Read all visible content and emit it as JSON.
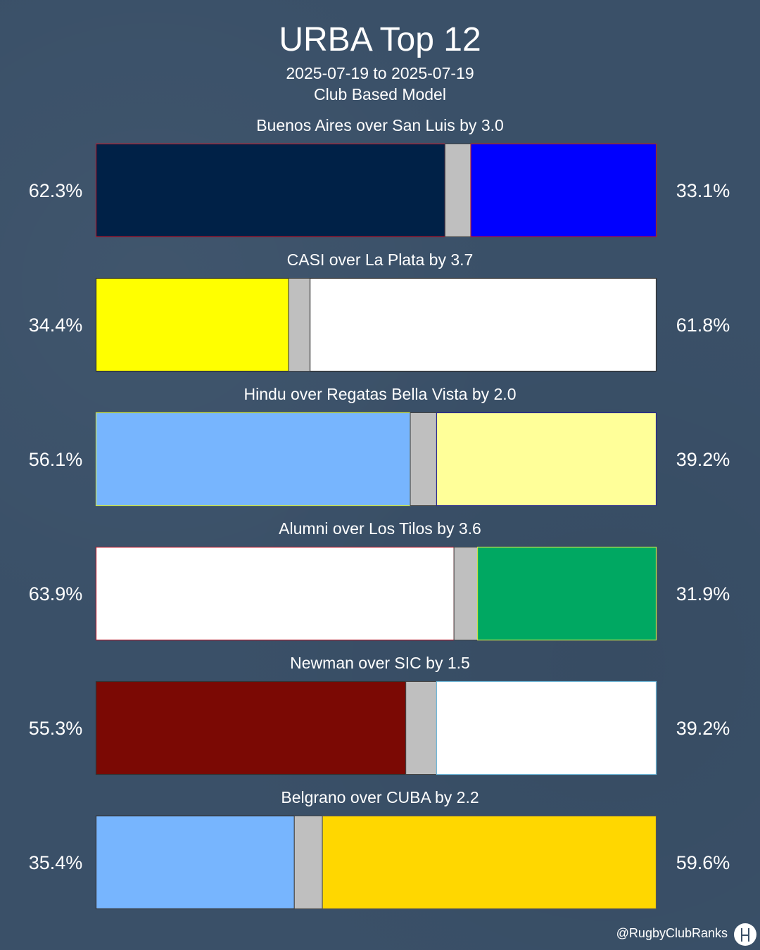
{
  "header": {
    "title": "URBA Top 12",
    "date_range": "2025-07-19 to 2025-07-19",
    "model": "Club Based Model"
  },
  "footer": {
    "handle": "@RugbyClubRanks",
    "logo_icon": "rugby-posts-icon"
  },
  "colors": {
    "background": "#3a5068",
    "draw": "#bfbfbf",
    "text": "#ffffff"
  },
  "chart_data": {
    "type": "bar",
    "orientation": "horizontal-stacked",
    "categories": [
      "Buenos Aires over San Luis by 3.0",
      "CASI over La Plata by 3.7",
      "Hindu over Regatas Bella Vista by 2.0",
      "Alumni over Los Tilos by 3.6",
      "Newman over SIC by 1.5",
      "Belgrano over CUBA by 2.2"
    ],
    "matches": [
      {
        "label": "Buenos Aires over San Luis by 3.0",
        "home_pct": 62.3,
        "away_pct": 33.1,
        "home_label": "62.3%",
        "away_label": "33.1%",
        "home_color": "#002147",
        "home_border": "#b01c2e",
        "away_color": "#0000ff",
        "away_border": "#b01c2e"
      },
      {
        "label": "CASI over La Plata by 3.7",
        "home_pct": 34.4,
        "away_pct": 61.8,
        "home_label": "34.4%",
        "away_label": "61.8%",
        "home_color": "#ffff00",
        "home_border": "#333333",
        "away_color": "#ffffff",
        "away_border": "#333333"
      },
      {
        "label": "Hindu over Regatas Bella Vista by 2.0",
        "home_pct": 56.1,
        "away_pct": 39.2,
        "home_label": "56.1%",
        "away_label": "39.2%",
        "home_color": "#77b5fe",
        "home_border": "#c9e04a",
        "away_color": "#ffff99",
        "away_border": "#2a2a8c"
      },
      {
        "label": "Alumni over Los Tilos by 3.6",
        "home_pct": 63.9,
        "away_pct": 31.9,
        "home_label": "63.9%",
        "away_label": "31.9%",
        "home_color": "#ffffff",
        "home_border": "#b01c2e",
        "away_color": "#00a862",
        "away_border": "#c9e04a"
      },
      {
        "label": "Newman over SIC by 1.5",
        "home_pct": 55.3,
        "away_pct": 39.2,
        "home_label": "55.3%",
        "away_label": "39.2%",
        "home_color": "#7b0904",
        "home_border": "#333333",
        "away_color": "#ffffff",
        "away_border": "#6fb7d8"
      },
      {
        "label": "Belgrano over CUBA by 2.2",
        "home_pct": 35.4,
        "away_pct": 59.6,
        "home_label": "35.4%",
        "away_label": "59.6%",
        "home_color": "#77b5fe",
        "home_border": "#333333",
        "away_color": "#ffd700",
        "away_border": "#555555"
      }
    ],
    "xlim": [
      0,
      100
    ],
    "grid": false,
    "legend": "none"
  }
}
